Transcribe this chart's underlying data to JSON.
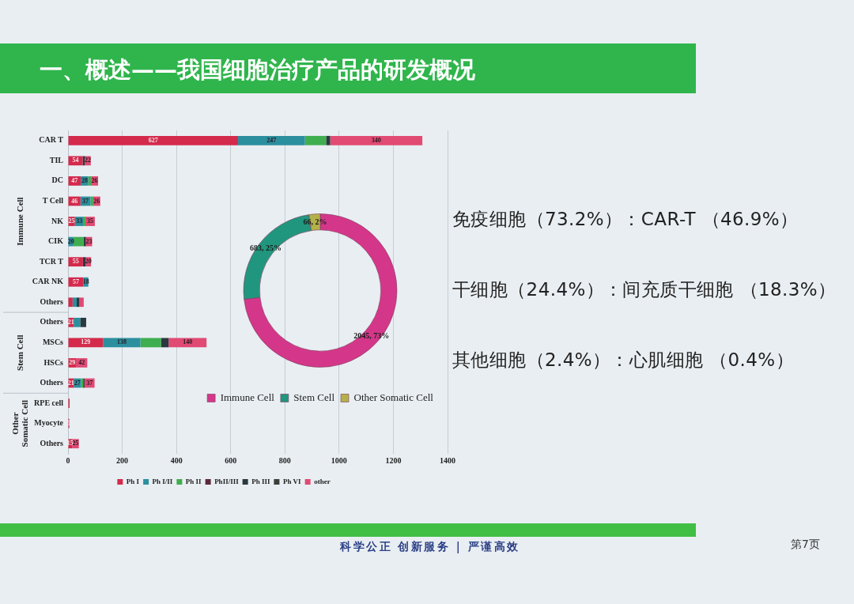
{
  "chart_data": [
    {
      "type": "bar",
      "title": "一、概述——我国细胞治疗产品的研发概况",
      "orientation": "horizontal",
      "stacked": true,
      "categories": [
        "CAR T",
        "TIL",
        "DC",
        "T Cell",
        "NK",
        "CIK",
        "TCR T",
        "CAR NK",
        "Others",
        "Others",
        "MSCs",
        "HSCs",
        "Others",
        "RPE cell",
        "Myocyte",
        "Others"
      ],
      "series": [
        {
          "name": "Ph I",
          "color": "#d42a4c",
          "values": [
            627,
            54,
            47,
            46,
            25,
            null,
            55,
            57,
            17,
            21,
            129,
            29,
            21,
            6,
            5,
            15
          ],
          "value_labels": [
            "627",
            "54",
            "47",
            "46",
            "25",
            null,
            "55",
            "57",
            null,
            "21",
            "129",
            "29",
            "21",
            null,
            "5",
            "15"
          ]
        },
        {
          "name": "Ph I/II",
          "color": "#2b8f9e",
          "values": [
            247,
            null,
            28,
            37,
            33,
            20,
            null,
            18,
            15,
            24,
            138,
            null,
            27,
            null,
            null,
            null
          ],
          "value_labels": [
            "247",
            null,
            "28",
            "37",
            "33",
            "20",
            null,
            "18",
            null,
            null,
            "138",
            null,
            "27",
            null,
            null,
            null
          ]
        },
        {
          "name": "Ph II",
          "color": "#3fae4f",
          "values": [
            78,
            null,
            10,
            10,
            6,
            38,
            null,
            null,
            null,
            null,
            76,
            null,
            8,
            null,
            null,
            null
          ]
        },
        {
          "name": "PhII/III",
          "color": "#5a2a3a",
          "values": [
            null,
            null,
            null,
            null,
            null,
            null,
            null,
            null,
            null,
            null,
            null,
            null,
            null,
            null,
            null,
            null
          ]
        },
        {
          "name": "Ph III",
          "color": "#2a3940",
          "values": [
            15,
            8,
            null,
            null,
            null,
            8,
            10,
            null,
            10,
            22,
            28,
            null,
            5,
            null,
            null,
            null
          ]
        },
        {
          "name": "Ph VI",
          "color": "#3b3f3a",
          "values": [
            null,
            null,
            null,
            null,
            null,
            null,
            null,
            null,
            null,
            null,
            null,
            null,
            null,
            null,
            null,
            null
          ]
        },
        {
          "name": "other",
          "color": "#e04a73",
          "values": [
            340,
            22,
            26,
            26,
            35,
            23,
            20,
            null,
            16,
            null,
            140,
            42,
            37,
            null,
            null,
            25
          ],
          "value_labels": [
            "340",
            "22",
            "26",
            "26",
            "35",
            "23",
            "20",
            null,
            null,
            null,
            "140",
            "42",
            "37",
            null,
            null,
            "25"
          ]
        }
      ],
      "xlim": [
        0,
        1400
      ],
      "xticks": [
        0,
        200,
        400,
        600,
        800,
        1000,
        1200,
        1400
      ],
      "grid": "x",
      "legend": "bottom",
      "annotations": [
        "Immune Cell",
        "Stem Cell",
        "Other Somatic Cell",
        "科学公正 创新服务 | 严谨高效",
        "第7页"
      ]
    },
    {
      "type": "donut",
      "categories": [
        "Immune Cell",
        "Stem Cell",
        "Other Somatic Cell"
      ],
      "values": [
        2045,
        683,
        66
      ],
      "colors": [
        "#d4378a",
        "#21967e",
        "#b4b04a"
      ],
      "value_labels": [
        "2045, 73%",
        "683, 25%",
        "66, 2%"
      ],
      "legend": "bottom"
    },
    {
      "type": "other",
      "annotations": [
        "免疫细胞（73.2%）：CAR-T （46.9%）",
        "干细胞（24.4%）：间充质干细胞 （18.3%）",
        "其他细胞（2.4%）：心肌细胞 （0.4%）"
      ]
    }
  ]
}
